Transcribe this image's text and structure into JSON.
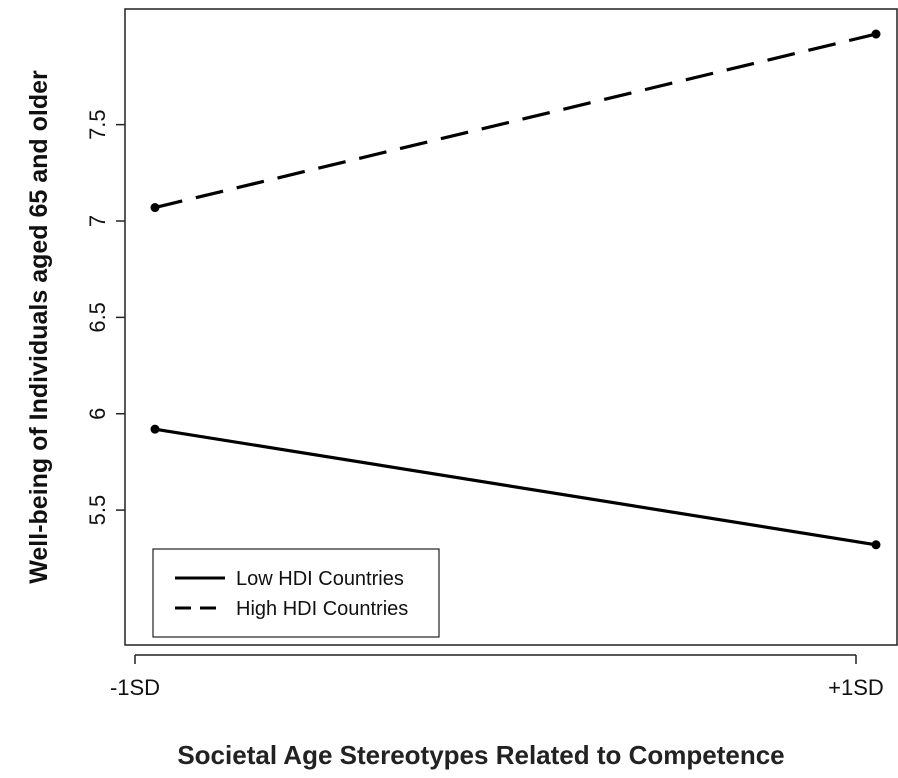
{
  "chart_data": {
    "type": "line",
    "categories": [
      "-1SD",
      "+1SD"
    ],
    "xlabel": "Societal Age Stereotypes Related to Competence",
    "ylabel": "Well-being of Individuals aged 65 and older",
    "ylim": [
      4.8,
      8.1
    ],
    "yticks": [
      5.5,
      6,
      6.5,
      7,
      7.5
    ],
    "ytick_labels": [
      "5.5",
      "6",
      "6.5",
      "7",
      "7.5"
    ],
    "legend_position": "bottom-left",
    "grid": false,
    "series": [
      {
        "name": "Low HDI Countries",
        "values": [
          5.92,
          5.32
        ],
        "line_style": "solid",
        "color": "#000000"
      },
      {
        "name": "High HDI Countries",
        "values": [
          7.07,
          7.97
        ],
        "line_style": "dashed",
        "color": "#000000"
      }
    ]
  }
}
